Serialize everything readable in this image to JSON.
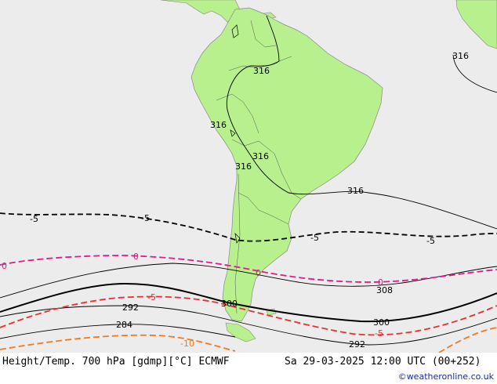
{
  "footer": {
    "title": "Height/Temp. 700 hPa [gdmp][°C] ECMWF",
    "valid_time": "Sa 29-03-2025 12:00 UTC (00+252)",
    "credit": "©weatheronline.co.uk"
  },
  "colors": {
    "sea": "#ececec",
    "land": "#b8f08e",
    "height_contour": "#000000",
    "temp_zero": "#e0198c",
    "temp_minus5": "#e83030",
    "temp_minus10": "#f07a20",
    "temp_minus5_dashed_black": "#000000"
  },
  "height_labels": {
    "h316_top_right": "316",
    "h316_amazon": "316",
    "h316_andes_north": "316",
    "h316_andes_mid": "316",
    "h316_andes_south": "316",
    "h316_south_atlantic": "316",
    "h308": "308",
    "h300_patagonia": "300",
    "h300_east": "300",
    "h292_west": "292",
    "h292_east": "292",
    "h284": "284"
  },
  "temp_labels": {
    "t_minus5_west": "-5",
    "t_minus5_mid": "-5",
    "t_minus5_atlantic": "-5",
    "t_minus5_east": "-5",
    "t_zero_west": "0",
    "t_zero_mid": "0",
    "t_zero_south": "0",
    "t_zero_east": "0",
    "t_red_minus5_west": "-5",
    "t_red_minus5_east": "-5",
    "t_minus10": "-10"
  }
}
